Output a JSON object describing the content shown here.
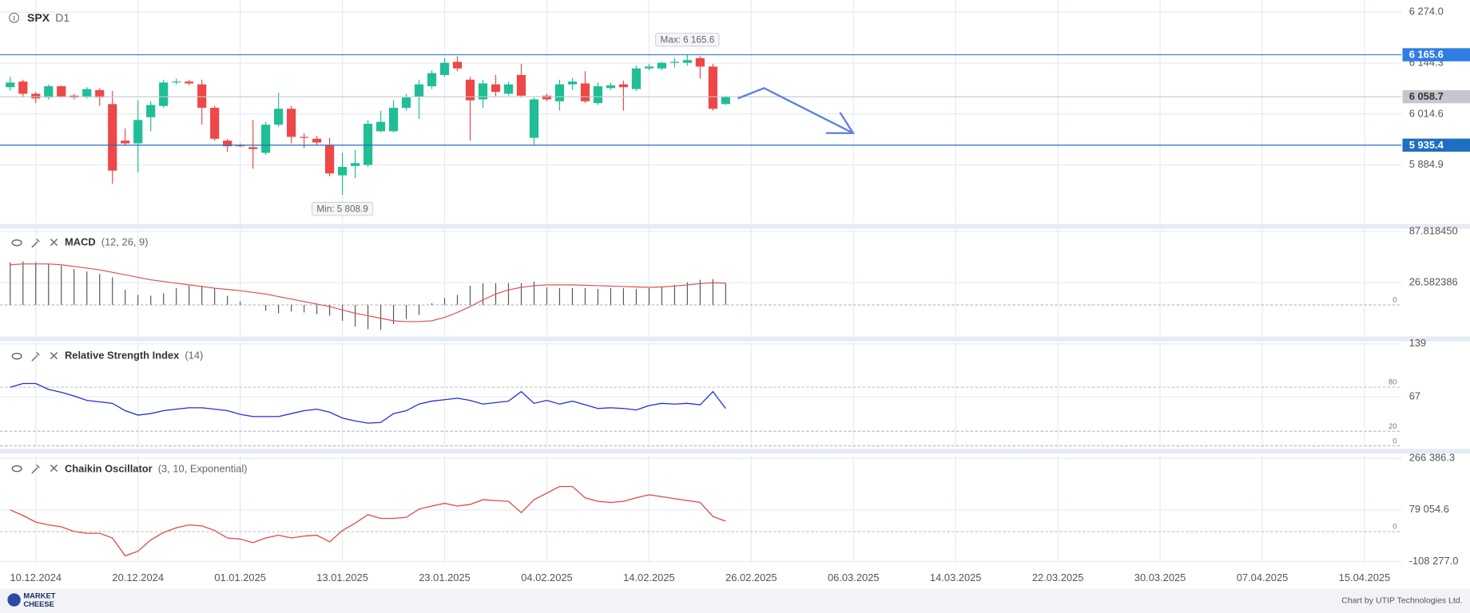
{
  "header": {
    "symbol": "SPX",
    "timeframe": "D1"
  },
  "footer": {
    "brand": [
      "MARKET",
      "CHEESE"
    ],
    "credit": "Chart by UTIP Technologies Ltd."
  },
  "chart_data": [
    {
      "type": "candlestick",
      "xlim": [
        -0.8,
        108.9
      ],
      "xticks": [
        {
          "value": 2,
          "label": "10.12.2024"
        },
        {
          "value": 10,
          "label": "20.12.2024"
        },
        {
          "value": 18,
          "label": "01.01.2025"
        },
        {
          "value": 26,
          "label": "13.01.2025"
        },
        {
          "value": 34,
          "label": "23.01.2025"
        },
        {
          "value": 42,
          "label": "04.02.2025"
        },
        {
          "value": 50,
          "label": "14.02.2025"
        },
        {
          "value": 58,
          "label": "26.02.2025"
        },
        {
          "value": 66,
          "label": "06.03.2025"
        },
        {
          "value": 74,
          "label": "14.03.2025"
        },
        {
          "value": 82,
          "label": "22.03.2025"
        },
        {
          "value": 90,
          "label": "30.03.2025"
        },
        {
          "value": 98,
          "label": "07.04.2025"
        },
        {
          "value": 106,
          "label": "15.04.2025"
        }
      ],
      "ylim": [
        5737,
        6305
      ],
      "yticks": [
        {
          "value": 6274.0,
          "label": "6 274.0"
        },
        {
          "value": 6144.3,
          "label": "6 144.3"
        },
        {
          "value": 6014.6,
          "label": "6 014.6"
        },
        {
          "value": 5884.9,
          "label": "5 884.9"
        }
      ],
      "grid": true,
      "up_color": "#1fbe96",
      "down_color": "#ee4747",
      "open": [
        6083.0,
        6097.3,
        6066.3,
        6056.8,
        6085.4,
        6061.5,
        6059.1,
        6075.8,
        6040.0,
        5946.9,
        5939.8,
        6006.6,
        6035.3,
        6094.9,
        6097.3,
        6090.2,
        6030.5,
        5946.9,
        5935.0,
        5930.2,
        5915.9,
        5987.5,
        6028.1,
        5956.5,
        5951.7,
        5935.0,
        5858.6,
        5882.5,
        5884.9,
        5970.8,
        5970.8,
        6030.5,
        6059.1,
        6085.4,
        6114.1,
        6147.5,
        6102.1,
        6052.0,
        6090.2,
        6066.3,
        6114.1,
        5954.1,
        6061.5,
        6047.2,
        6090.2,
        6092.6,
        6042.4,
        6080.6,
        6090.2,
        6078.2,
        6130.8,
        6130.8,
        6145.1,
        6145.1,
        6157.0,
        6135.5,
        6040.0
      ],
      "high": [
        6109.3,
        6102.1,
        6071.1,
        6090.2,
        6087.8,
        6066.3,
        6083.0,
        6080.6,
        6073.5,
        5978.0,
        6049.6,
        6047.2,
        6102.1,
        6104.5,
        6102.1,
        6102.1,
        6035.3,
        5951.7,
        5939.8,
        5999.5,
        5994.7,
        6068.7,
        6035.3,
        5966.0,
        5958.9,
        5954.1,
        5915.9,
        5923.1,
        5999.5,
        6023.3,
        6049.6,
        6066.3,
        6102.1,
        6126.0,
        6157.0,
        6161.8,
        6109.3,
        6102.1,
        6114.1,
        6097.3,
        6142.7,
        6056.8,
        6066.3,
        6102.1,
        6106.9,
        6123.6,
        6094.9,
        6094.9,
        6099.7,
        6137.9,
        6142.7,
        6147.5,
        6157.0,
        6165.6,
        6161.8,
        6142.7,
        6061.5
      ],
      "low": [
        6073.5,
        6056.8,
        6042.4,
        6052.0,
        6056.8,
        6052.0,
        6054.4,
        6035.3,
        5837.1,
        5935.0,
        5865.8,
        5970.8,
        6030.5,
        6090.2,
        6087.8,
        5987.5,
        5946.9,
        5918.3,
        5930.2,
        5875.4,
        5911.1,
        5982.8,
        5939.8,
        5927.9,
        5935.0,
        5856.2,
        5808.9,
        5851.5,
        5880.1,
        5968.4,
        5968.4,
        6023.3,
        6001.9,
        6078.2,
        6109.3,
        6123.6,
        5946.9,
        6030.5,
        6059.1,
        6061.5,
        6056.8,
        5935.0,
        6047.2,
        6023.3,
        6075.8,
        6042.4,
        6037.7,
        6075.8,
        6023.3,
        6073.5,
        6126.0,
        6126.0,
        6133.1,
        6137.9,
        6104.5,
        6023.3,
        6037.7
      ],
      "close": [
        6094.9,
        6066.3,
        6054.4,
        6085.4,
        6059.1,
        6056.8,
        6078.2,
        6056.8,
        5870.6,
        5939.8,
        5999.5,
        6037.7,
        6094.9,
        6097.3,
        6092.6,
        6030.5,
        5951.7,
        5932.6,
        5932.6,
        5925.5,
        5987.5,
        6028.1,
        5956.5,
        5954.1,
        5942.2,
        5863.4,
        5880.1,
        5889.7,
        5989.9,
        5994.7,
        6030.5,
        6056.8,
        6090.2,
        6118.8,
        6145.1,
        6130.8,
        6049.6,
        6092.6,
        6071.1,
        6090.2,
        6061.5,
        6052.0,
        6052.0,
        6090.2,
        6097.3,
        6047.2,
        6085.4,
        6087.8,
        6083.0,
        6130.8,
        6135.5,
        6145.1,
        6147.5,
        6152.2,
        6135.5,
        6028.1,
        6058.7
      ],
      "hlines": [
        {
          "value": 6165.6,
          "label": "6 165.6",
          "color": "#2f7de1"
        },
        {
          "value": 5935.4,
          "label": "5 935.4",
          "color": "#1f6fc0"
        }
      ],
      "last_price": {
        "value": 6058.7,
        "label": "6 058.7",
        "color": "#c4c8ce"
      },
      "annotations": [
        {
          "label": "Max: 6 165.6",
          "value": 6165.6
        },
        {
          "label": "Min: 5 808.9",
          "value": 5808.9
        }
      ]
    },
    {
      "type": "macd",
      "title": "MACD",
      "params": "(12, 26, 9)",
      "ylim": [
        -36.7,
        91.2
      ],
      "yticks": [
        {
          "value": 87.81845,
          "label": "87.818450"
        },
        26.582386
      ],
      "levels": [
        0
      ],
      "color": "#555555",
      "signal_color": "#e05050",
      "values": [
        51,
        52,
        51,
        49,
        47,
        43,
        40,
        37,
        33,
        18,
        12,
        11,
        14,
        20,
        23,
        23,
        20,
        11,
        4,
        0,
        -7,
        -10,
        -8,
        -9,
        -11,
        -13,
        -19,
        -26,
        -29,
        -30,
        -23,
        -17,
        -12,
        2,
        8,
        12,
        23,
        26,
        26,
        26,
        26,
        28,
        21,
        20,
        20,
        20,
        19,
        20,
        20,
        19,
        20,
        22,
        24,
        27,
        30,
        31,
        26
      ],
      "signal": [
        48,
        49,
        49,
        49,
        48,
        46,
        44,
        42,
        39,
        36,
        33,
        30,
        28,
        26,
        24,
        22,
        20,
        18.5,
        17,
        15,
        13,
        10,
        7,
        4,
        1,
        -2,
        -6,
        -10,
        -13,
        -16,
        -19,
        -20,
        -20,
        -19,
        -15,
        -9,
        -2,
        6,
        13,
        18,
        21,
        23,
        24,
        24,
        24,
        23.5,
        23,
        22.5,
        22,
        21.5,
        21,
        21.5,
        22.5,
        24,
        25.5,
        26.5,
        26
      ]
    },
    {
      "type": "line",
      "title": "Relative Strength Index",
      "params": "(14)",
      "ylim": [
        -2.9,
        141.4
      ],
      "yticks": [
        139,
        67
      ],
      "levels": [
        80,
        20,
        0
      ],
      "color": "#2330d0",
      "values": [
        80,
        85,
        85,
        77,
        73,
        68,
        62,
        60,
        58,
        48,
        42,
        44,
        48,
        50,
        52,
        52,
        50,
        48,
        43,
        40,
        40,
        40,
        44,
        48,
        50,
        46,
        38,
        34,
        31,
        32,
        44,
        48,
        57,
        61,
        63,
        65,
        62,
        57,
        59,
        61,
        74,
        58,
        62,
        57,
        61,
        56,
        51,
        52,
        51,
        49,
        55,
        58,
        57,
        58,
        56,
        74,
        51
      ]
    },
    {
      "type": "line",
      "title": "Chaikin Oscillator",
      "params": "(3, 10, Exponential)",
      "ylim": [
        -111700,
        276600
      ],
      "yticks": [
        {
          "value": 266386.3,
          "label": "266 386.3"
        },
        {
          "value": 79054.6,
          "label": "79 054.6"
        },
        {
          "value": -108277.0,
          "label": "-108 277.0"
        }
      ],
      "levels": [
        0
      ],
      "color": "#e04848",
      "values": [
        79000,
        58600,
        34700,
        24500,
        17700,
        700,
        -6000,
        -6000,
        -23000,
        -88000,
        -71000,
        -30000,
        -3000,
        14000,
        24500,
        21000,
        4000,
        -23000,
        -27000,
        -40000,
        -23000,
        -13000,
        -23000,
        -16000,
        -13000,
        -37000,
        4000,
        31000,
        62000,
        48000,
        48000,
        52000,
        82000,
        93000,
        103000,
        93000,
        99000,
        116000,
        113000,
        110000,
        69000,
        116000,
        140000,
        164000,
        164000,
        123000,
        110000,
        106000,
        110000,
        123000,
        134000,
        127000,
        120000,
        113000,
        106000,
        55000,
        38000
      ]
    }
  ]
}
